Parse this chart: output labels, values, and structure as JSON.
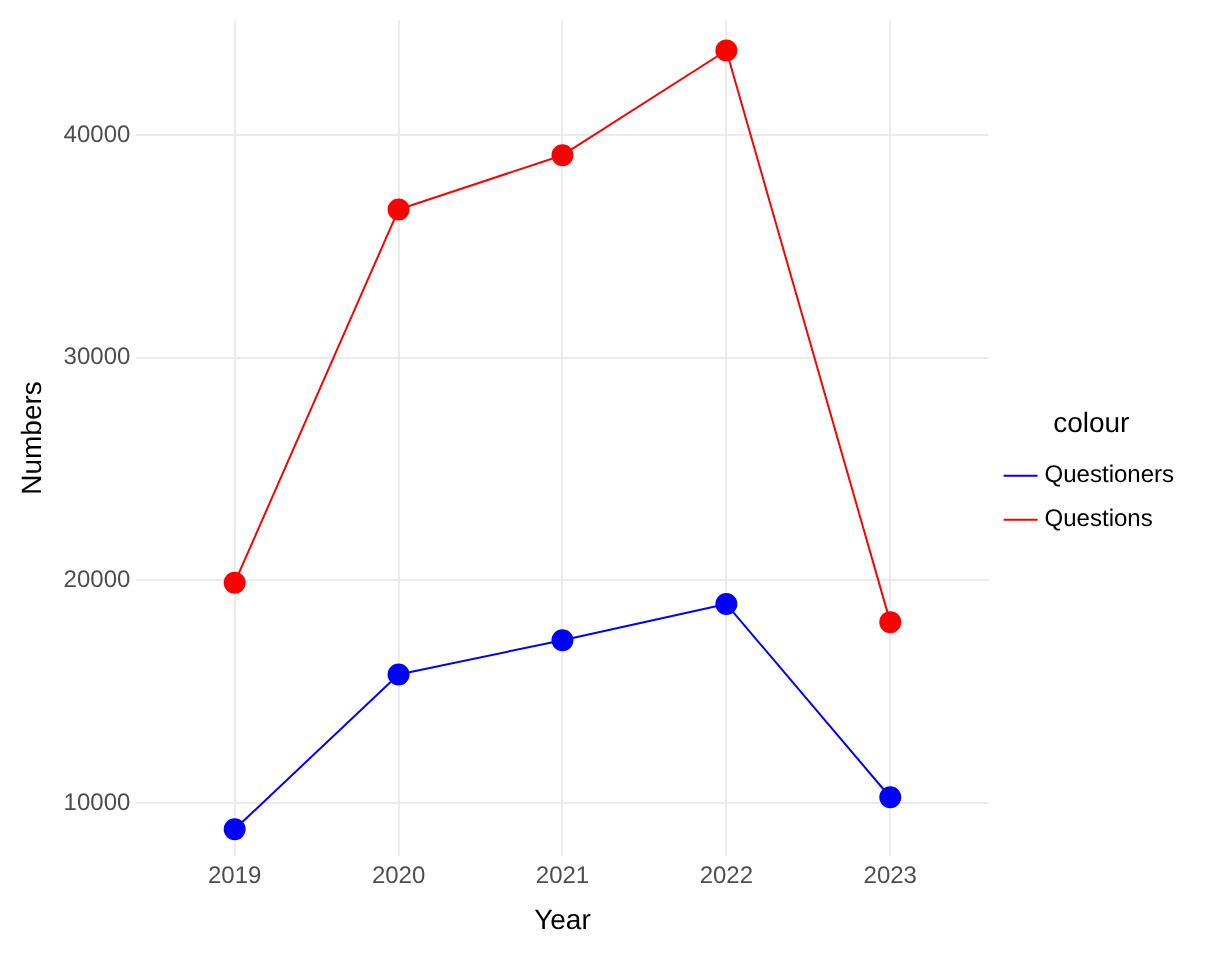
{
  "chart_data": {
    "type": "line",
    "xlabel": "Year",
    "ylabel": "Numbers",
    "legend_title": "colour",
    "x": [
      2019,
      2020,
      2021,
      2022,
      2023
    ],
    "series": [
      {
        "name": "Questioners",
        "color": "#0000ff",
        "values": [
          8830,
          15780,
          17320,
          18940,
          10270
        ]
      },
      {
        "name": "Questions",
        "color": "#ff0000",
        "values": [
          19900,
          36650,
          39090,
          43790,
          18130
        ]
      }
    ],
    "xlim": [
      2018.4,
      2023.6
    ],
    "xticks": [
      2019,
      2020,
      2021,
      2022,
      2023
    ],
    "ylim": [
      7650,
      45140
    ],
    "yticks": [
      10000,
      20000,
      30000,
      40000
    ],
    "grid": true,
    "legend": "right",
    "marker": "circle",
    "line_style": "solid"
  }
}
